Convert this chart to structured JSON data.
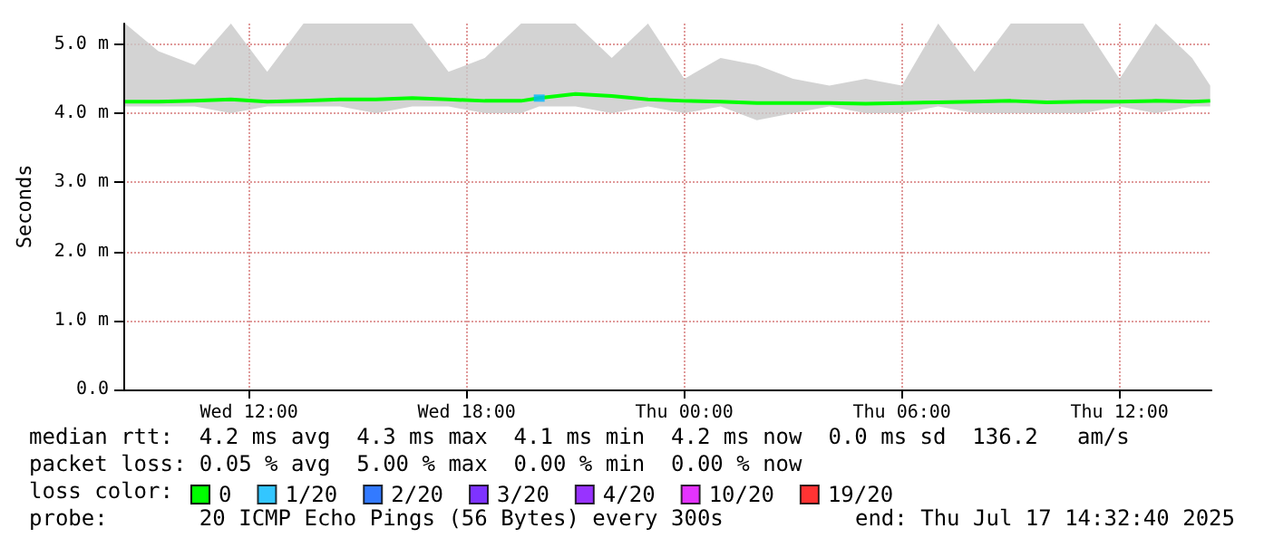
{
  "chart_data": {
    "type": "line",
    "ylabel": "Seconds",
    "legend_title": "loss color:",
    "legend": "bottom",
    "grid": true,
    "xlim": [
      "2025-07-16T08:32",
      "2025-07-17T14:32"
    ],
    "xticks": [
      {
        "value": "2025-07-16T12:00",
        "label": "Wed 12:00"
      },
      {
        "value": "2025-07-16T18:00",
        "label": "Wed 18:00"
      },
      {
        "value": "2025-07-17T00:00",
        "label": "Thu 00:00"
      },
      {
        "value": "2025-07-17T06:00",
        "label": "Thu 06:00"
      },
      {
        "value": "2025-07-17T12:00",
        "label": "Thu 12:00"
      }
    ],
    "ylim": [
      0,
      5.3
    ],
    "yticks": [
      {
        "value": 0,
        "label": "0.0"
      },
      {
        "value": 1,
        "label": "1.0 m"
      },
      {
        "value": 2,
        "label": "2.0 m"
      },
      {
        "value": 3,
        "label": "3.0 m"
      },
      {
        "value": 4,
        "label": "4.0 m"
      },
      {
        "value": 5,
        "label": "5.0 m"
      }
    ],
    "x": [
      "2025-07-16T08:35",
      "2025-07-16T09:30",
      "2025-07-16T10:30",
      "2025-07-16T11:30",
      "2025-07-16T12:30",
      "2025-07-16T13:30",
      "2025-07-16T14:30",
      "2025-07-16T15:30",
      "2025-07-16T16:30",
      "2025-07-16T17:30",
      "2025-07-16T18:30",
      "2025-07-16T19:30",
      "2025-07-16T20:00",
      "2025-07-16T21:00",
      "2025-07-16T22:00",
      "2025-07-16T23:00",
      "2025-07-17T00:00",
      "2025-07-17T01:00",
      "2025-07-17T02:00",
      "2025-07-17T03:00",
      "2025-07-17T04:00",
      "2025-07-17T05:00",
      "2025-07-17T06:00",
      "2025-07-17T07:00",
      "2025-07-17T08:00",
      "2025-07-17T09:00",
      "2025-07-17T10:00",
      "2025-07-17T11:00",
      "2025-07-17T12:00",
      "2025-07-17T13:00",
      "2025-07-17T14:00",
      "2025-07-17T14:30"
    ],
    "series": [
      {
        "name": "0",
        "color": "#00ff00",
        "values": [
          4.17,
          4.17,
          4.18,
          4.2,
          4.17,
          4.18,
          4.2,
          4.2,
          4.22,
          4.2,
          4.18,
          4.18,
          4.22,
          4.28,
          4.25,
          4.2,
          4.18,
          4.17,
          4.15,
          4.15,
          4.15,
          4.14,
          4.15,
          4.16,
          4.17,
          4.18,
          4.16,
          4.17,
          4.17,
          4.18,
          4.17,
          4.18
        ],
        "lower": [
          4.1,
          4.1,
          4.1,
          4.0,
          4.1,
          4.1,
          4.1,
          4.0,
          4.1,
          4.1,
          4.0,
          4.0,
          4.1,
          4.1,
          4.0,
          4.1,
          4.0,
          4.1,
          3.9,
          4.0,
          4.1,
          4.0,
          4.0,
          4.1,
          4.0,
          4.0,
          4.0,
          4.0,
          4.1,
          4.0,
          4.1,
          4.1
        ],
        "upper": [
          5.3,
          4.9,
          4.7,
          5.3,
          4.6,
          5.3,
          5.3,
          5.3,
          5.3,
          4.6,
          4.8,
          5.3,
          5.3,
          5.3,
          4.8,
          5.3,
          4.5,
          4.8,
          4.7,
          4.5,
          4.4,
          4.5,
          4.4,
          5.3,
          4.6,
          5.3,
          5.3,
          5.3,
          4.5,
          5.3,
          4.8,
          4.4
        ]
      },
      {
        "name": "1/20",
        "color": "#00b8ff",
        "type": "scatter",
        "x": [
          "2025-07-16T20:00"
        ],
        "values": [
          4.22
        ]
      },
      {
        "name": "2/20",
        "color": "#0059ff",
        "type": "scatter",
        "values": [
          null,
          null,
          null,
          null,
          null,
          null,
          null,
          null,
          null,
          null,
          null,
          null,
          null,
          null,
          null,
          null,
          null,
          null,
          null,
          null,
          null,
          null,
          null,
          null,
          null,
          null,
          null,
          null,
          null,
          null,
          null,
          null
        ]
      },
      {
        "name": "3/20",
        "color": "#5e00ff",
        "type": "scatter",
        "values": [
          null,
          null,
          null,
          null,
          null,
          null,
          null,
          null,
          null,
          null,
          null,
          null,
          null,
          null,
          null,
          null,
          null,
          null,
          null,
          null,
          null,
          null,
          null,
          null,
          null,
          null,
          null,
          null,
          null,
          null,
          null,
          null
        ]
      },
      {
        "name": "4/20",
        "color": "#7e00ff",
        "type": "scatter",
        "values": [
          null,
          null,
          null,
          null,
          null,
          null,
          null,
          null,
          null,
          null,
          null,
          null,
          null,
          null,
          null,
          null,
          null,
          null,
          null,
          null,
          null,
          null,
          null,
          null,
          null,
          null,
          null,
          null,
          null,
          null,
          null,
          null
        ]
      },
      {
        "name": "10/20",
        "color": "#dd00ff",
        "type": "scatter",
        "values": [
          null,
          null,
          null,
          null,
          null,
          null,
          null,
          null,
          null,
          null,
          null,
          null,
          null,
          null,
          null,
          null,
          null,
          null,
          null,
          null,
          null,
          null,
          null,
          null,
          null,
          null,
          null,
          null,
          null,
          null,
          null,
          null
        ]
      },
      {
        "name": "19/20",
        "color": "#ff0000",
        "type": "scatter",
        "values": [
          null,
          null,
          null,
          null,
          null,
          null,
          null,
          null,
          null,
          null,
          null,
          null,
          null,
          null,
          null,
          null,
          null,
          null,
          null,
          null,
          null,
          null,
          null,
          null,
          null,
          null,
          null,
          null,
          null,
          null,
          null,
          null
        ]
      }
    ],
    "annotations": [
      "median rtt:  4.2 ms avg  4.3 ms max  4.1 ms min  4.2 ms now  0.0 ms sd  136.2   am/s",
      "packet loss: 0.05 % avg  5.00 % max  0.00 % min  0.00 % now",
      "probe:       20 ICMP Echo Pings (56 Bytes) every 300s",
      "end: Thu Jul 17 14:32:40 2025"
    ]
  }
}
